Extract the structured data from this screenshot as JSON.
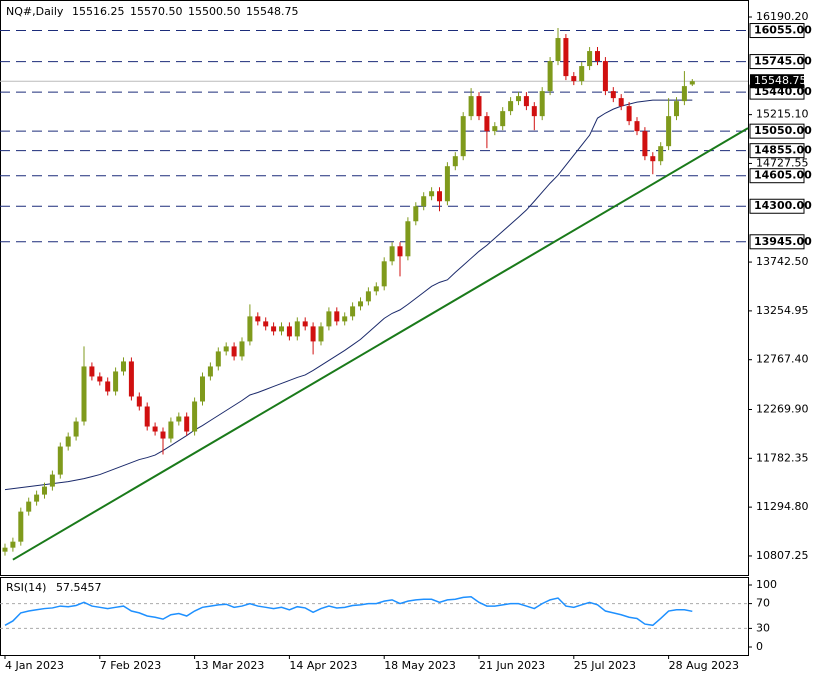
{
  "chart_data": {
    "type": "candlestick",
    "title": "NQ#,Daily",
    "ohlc_labels": [
      "15516.25",
      "15570.50",
      "15500.50",
      "15548.75"
    ],
    "up_color": "#7f9a1c",
    "down_color": "#d01010",
    "categories": [
      "4 Jan 2023",
      null,
      null,
      null,
      null,
      null,
      null,
      null,
      null,
      null,
      null,
      null,
      "7 Feb 2023",
      null,
      null,
      null,
      null,
      null,
      null,
      null,
      null,
      null,
      null,
      null,
      "13 Mar 2023",
      null,
      null,
      null,
      null,
      null,
      null,
      null,
      null,
      null,
      null,
      null,
      "14 Apr 2023",
      null,
      null,
      null,
      null,
      null,
      null,
      null,
      null,
      null,
      null,
      null,
      "18 May 2023",
      null,
      null,
      null,
      null,
      null,
      null,
      null,
      null,
      null,
      null,
      null,
      "21 Jun 2023",
      null,
      null,
      null,
      null,
      null,
      null,
      null,
      null,
      null,
      null,
      null,
      "25 Jul 2023",
      null,
      null,
      null,
      null,
      null,
      null,
      null,
      null,
      null,
      null,
      null,
      "28 Aug 2023",
      null,
      null,
      null
    ],
    "open": [
      10850,
      10890,
      10950,
      11250,
      11350,
      11420,
      11500,
      11620,
      11900,
      12000,
      12150,
      12700,
      12600,
      12550,
      12450,
      12650,
      12750,
      12400,
      12300,
      12100,
      12050,
      11980,
      12150,
      12200,
      12050,
      12350,
      12600,
      12700,
      12850,
      12900,
      12800,
      12950,
      13200,
      13150,
      13100,
      13050,
      13100,
      13000,
      13150,
      13100,
      12950,
      13100,
      13250,
      13150,
      13200,
      13300,
      13350,
      13450,
      13500,
      13750,
      13900,
      13800,
      14150,
      14300,
      14400,
      14450,
      14350,
      14700,
      14800,
      15200,
      15400,
      15200,
      15050,
      15100,
      15250,
      15350,
      15400,
      15300,
      15200,
      15450,
      15750,
      15980,
      15600,
      15550,
      15700,
      15850,
      15750,
      15450,
      15380,
      15300,
      15150,
      15050,
      14800,
      14750,
      14900,
      15200,
      15350,
      15516.25
    ],
    "high": [
      10930,
      10990,
      11290,
      11390,
      11460,
      11540,
      11660,
      11940,
      12040,
      12190,
      12900,
      12740,
      12640,
      12590,
      12690,
      12790,
      12790,
      12440,
      12340,
      12140,
      12090,
      12190,
      12240,
      12240,
      12390,
      12640,
      12740,
      12890,
      12940,
      12940,
      12990,
      13320,
      13240,
      13190,
      13140,
      13140,
      13140,
      13190,
      13190,
      13140,
      13140,
      13290,
      13290,
      13240,
      13340,
      13390,
      13490,
      13540,
      13790,
      13940,
      13940,
      14190,
      14340,
      14440,
      14490,
      14490,
      14740,
      14840,
      15240,
      15480,
      15440,
      15240,
      15140,
      15290,
      15390,
      15440,
      15440,
      15340,
      15490,
      15790,
      16080,
      16020,
      15640,
      15740,
      15890,
      15890,
      15790,
      15490,
      15420,
      15340,
      15190,
      15090,
      14840,
      14940,
      15380,
      15390,
      15650,
      15570.5
    ],
    "low": [
      10810,
      10850,
      10910,
      11210,
      11310,
      11380,
      11460,
      11580,
      11860,
      11960,
      12110,
      12560,
      12510,
      12410,
      12410,
      12610,
      12360,
      12260,
      12060,
      12010,
      11820,
      11940,
      12110,
      12010,
      12010,
      12310,
      12560,
      12660,
      12810,
      12760,
      12760,
      12910,
      13110,
      13060,
      13010,
      13010,
      12960,
      12960,
      13060,
      12820,
      12910,
      13060,
      13110,
      13110,
      13160,
      13260,
      13310,
      13410,
      13460,
      13710,
      13600,
      13760,
      14110,
      14260,
      14360,
      14250,
      14310,
      14660,
      14760,
      15160,
      15160,
      14880,
      15010,
      15060,
      15210,
      15310,
      15260,
      15060,
      15160,
      15410,
      15710,
      15560,
      15510,
      15510,
      15660,
      15710,
      15410,
      15340,
      15260,
      15110,
      15010,
      14760,
      14620,
      14710,
      14860,
      15160,
      15310,
      15500.5
    ],
    "close": [
      10890,
      10950,
      11250,
      11350,
      11420,
      11500,
      11620,
      11900,
      12000,
      12150,
      12700,
      12600,
      12550,
      12450,
      12650,
      12750,
      12400,
      12300,
      12100,
      12050,
      11980,
      12150,
      12200,
      12050,
      12350,
      12600,
      12700,
      12850,
      12900,
      12800,
      12950,
      13200,
      13150,
      13100,
      13050,
      13100,
      13000,
      13150,
      13100,
      12950,
      13100,
      13250,
      13150,
      13200,
      13300,
      13350,
      13450,
      13500,
      13750,
      13900,
      13800,
      14150,
      14300,
      14400,
      14450,
      14350,
      14700,
      14800,
      15200,
      15400,
      15200,
      15050,
      15100,
      15250,
      15350,
      15400,
      15300,
      15200,
      15450,
      15750,
      15980,
      15600,
      15550,
      15700,
      15850,
      15750,
      15450,
      15380,
      15300,
      15150,
      15050,
      14800,
      14750,
      14900,
      15200,
      15350,
      15500,
      15548.75
    ],
    "moving_average": {
      "color": "#1b2a6b",
      "values": [
        11470,
        11480,
        11490,
        11500,
        11510,
        11520,
        11530,
        11540,
        11550,
        11565,
        11580,
        11600,
        11620,
        11650,
        11680,
        11710,
        11740,
        11770,
        11790,
        11815,
        11860,
        11910,
        11960,
        12010,
        12065,
        12110,
        12160,
        12210,
        12260,
        12310,
        12360,
        12415,
        12440,
        12470,
        12500,
        12530,
        12560,
        12590,
        12615,
        12660,
        12710,
        12760,
        12810,
        12860,
        12915,
        12970,
        13040,
        13110,
        13180,
        13230,
        13265,
        13320,
        13380,
        13440,
        13500,
        13540,
        13565,
        13640,
        13710,
        13780,
        13850,
        13910,
        13980,
        14050,
        14120,
        14190,
        14262,
        14350,
        14440,
        14530,
        14610,
        14710,
        14810,
        14910,
        15010,
        15180,
        15230,
        15270,
        15300,
        15320,
        15340,
        15350,
        15360,
        15360,
        15360,
        15360,
        15360,
        15360
      ]
    },
    "trendline": {
      "color": "#1a7a1a",
      "values": [
        10770,
        15080
      ]
    },
    "levels": {
      "color": "#1c2c7a",
      "values": [
        {
          "value": 16055,
          "label": "16055.00"
        },
        {
          "value": 15745,
          "label": "15745.00"
        },
        {
          "value": 15440,
          "label": "15440.00"
        },
        {
          "value": 15050,
          "label": "15050.00"
        },
        {
          "value": 14855,
          "label": "14855.00"
        },
        {
          "value": 14605,
          "label": "14605.00"
        },
        {
          "value": 14300,
          "label": "14300.00"
        },
        {
          "value": 13945,
          "label": "13945.00"
        }
      ]
    },
    "ylim": [
      10617,
      16340
    ],
    "yticks": [
      {
        "value": 16190.2,
        "label": "16190.20"
      },
      {
        "value": 15215.1,
        "label": "15215.10"
      },
      14727.55,
      {
        "value": 13742.5,
        "label": "13742.50"
      },
      13254.95,
      {
        "value": 12767.4,
        "label": "12767.40"
      },
      {
        "value": 12269.9,
        "label": "12269.90"
      },
      11782.35,
      {
        "value": 11294.8,
        "label": "11294.80"
      },
      10807.25
    ],
    "rsi": {
      "name": "RSI(14)",
      "color": "#1e90ff",
      "ylim": [
        0,
        100
      ],
      "yticks": [
        100,
        70,
        30,
        0
      ],
      "levels": [
        70,
        30
      ],
      "values": [
        35,
        42,
        55,
        58,
        60,
        62,
        63,
        66,
        65,
        67,
        72,
        66,
        64,
        62,
        64,
        66,
        58,
        55,
        50,
        48,
        45,
        52,
        54,
        50,
        58,
        64,
        66,
        68,
        69,
        64,
        66,
        70,
        66,
        64,
        62,
        64,
        60,
        65,
        63,
        56,
        62,
        66,
        63,
        64,
        67,
        68,
        70,
        70,
        74,
        76,
        70,
        74,
        76,
        77,
        77,
        72,
        76,
        77,
        80,
        81,
        72,
        66,
        66,
        68,
        70,
        70,
        66,
        62,
        70,
        76,
        79,
        66,
        64,
        68,
        72,
        68,
        58,
        55,
        52,
        48,
        46,
        37,
        35,
        46,
        58,
        60,
        60,
        57.5457
      ]
    }
  }
}
